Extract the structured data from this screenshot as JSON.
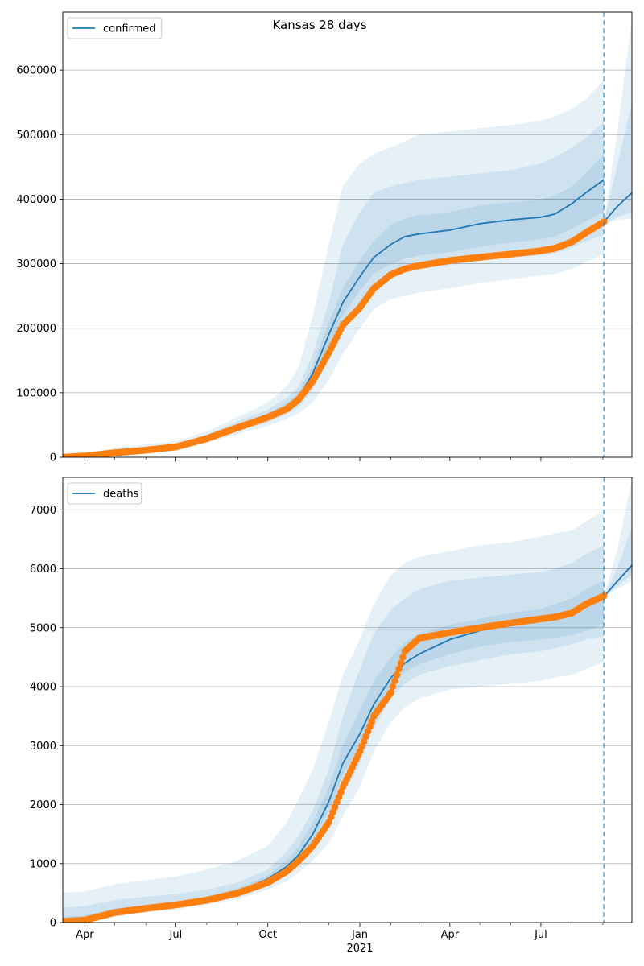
{
  "figure": {
    "title": "Kansas 28 days"
  },
  "chart_data": [
    {
      "type": "line",
      "panel": "top",
      "legend": [
        {
          "label": "confirmed",
          "color": "#1f77b4"
        }
      ],
      "legend_position": "upper-left",
      "xlim": [
        "2020-03-10",
        "2021-09-30"
      ],
      "ylim": [
        0,
        690000
      ],
      "yticks": [
        0,
        100000,
        200000,
        300000,
        400000,
        500000,
        600000
      ],
      "ytick_labels": [
        "0",
        "100000",
        "200000",
        "300000",
        "400000",
        "500000",
        "600000"
      ],
      "grid": "horizontal",
      "forecast_start": "2021-09-02",
      "colors": {
        "model": "#1f77b4",
        "observed": "#ff7f0e",
        "band": "#1f77b4"
      },
      "model_curve": {
        "x": [
          "2020-03-10",
          "2020-04-01",
          "2020-05-01",
          "2020-06-01",
          "2020-07-01",
          "2020-08-01",
          "2020-09-01",
          "2020-10-01",
          "2020-10-20",
          "2020-11-01",
          "2020-11-15",
          "2020-12-01",
          "2020-12-15",
          "2021-01-01",
          "2021-01-15",
          "2021-02-01",
          "2021-02-15",
          "2021-03-01",
          "2021-04-01",
          "2021-05-01",
          "2021-06-01",
          "2021-07-01",
          "2021-07-15",
          "2021-08-01",
          "2021-08-15",
          "2021-09-02"
        ],
        "y": [
          0,
          3000,
          9000,
          13000,
          17000,
          30000,
          48000,
          63000,
          78000,
          93000,
          130000,
          190000,
          240000,
          280000,
          310000,
          330000,
          342000,
          346000,
          352000,
          362000,
          368000,
          372000,
          377000,
          393000,
          410000,
          430000
        ]
      },
      "forecast_curve": {
        "x": [
          "2021-09-02",
          "2021-09-15",
          "2021-09-30"
        ],
        "y": [
          365000,
          388000,
          410000
        ]
      },
      "observed": {
        "x": [
          "2020-03-10",
          "2020-04-01",
          "2020-05-01",
          "2020-06-01",
          "2020-07-01",
          "2020-08-01",
          "2020-09-01",
          "2020-10-01",
          "2020-10-20",
          "2020-11-01",
          "2020-11-15",
          "2020-12-01",
          "2020-12-15",
          "2021-01-01",
          "2021-01-15",
          "2021-02-01",
          "2021-02-15",
          "2021-03-01",
          "2021-04-01",
          "2021-05-01",
          "2021-06-01",
          "2021-07-01",
          "2021-07-15",
          "2021-08-01",
          "2021-08-15",
          "2021-09-02"
        ],
        "y": [
          0,
          2000,
          7000,
          11000,
          16000,
          29000,
          46000,
          62000,
          75000,
          90000,
          118000,
          162000,
          205000,
          232000,
          262000,
          283000,
          292000,
          297000,
          305000,
          310000,
          315000,
          320000,
          324000,
          334000,
          348000,
          365000
        ]
      },
      "bands": [
        {
          "x": [
            "2020-03-10",
            "2020-04-01",
            "2020-05-01",
            "2020-06-01",
            "2020-07-01",
            "2020-08-01",
            "2020-09-01",
            "2020-10-01",
            "2020-10-20",
            "2020-11-01",
            "2020-11-15",
            "2020-12-01",
            "2020-12-15",
            "2021-01-01",
            "2021-01-15",
            "2021-02-01",
            "2021-02-15",
            "2021-03-01",
            "2021-04-01",
            "2021-05-01",
            "2021-06-01",
            "2021-07-01",
            "2021-07-15",
            "2021-08-01",
            "2021-08-15",
            "2021-09-02"
          ],
          "low": [
            0,
            1500,
            5000,
            8000,
            12000,
            22000,
            36000,
            48000,
            60000,
            68000,
            85000,
            120000,
            160000,
            200000,
            230000,
            245000,
            250000,
            255000,
            262000,
            270000,
            276000,
            282000,
            284000,
            292000,
            302000,
            315000
          ],
          "high": [
            0,
            6000,
            14000,
            20000,
            25000,
            40000,
            62000,
            85000,
            110000,
            140000,
            220000,
            330000,
            420000,
            455000,
            470000,
            480000,
            490000,
            500000,
            505000,
            510000,
            515000,
            522000,
            528000,
            540000,
            555000,
            585000
          ]
        },
        {
          "x": [
            "2020-03-10",
            "2020-04-01",
            "2020-05-01",
            "2020-06-01",
            "2020-07-01",
            "2020-08-01",
            "2020-09-01",
            "2020-10-01",
            "2020-10-20",
            "2020-11-01",
            "2020-11-15",
            "2020-12-01",
            "2020-12-15",
            "2021-01-01",
            "2021-01-15",
            "2021-02-01",
            "2021-02-15",
            "2021-03-01",
            "2021-04-01",
            "2021-05-01",
            "2021-06-01",
            "2021-07-01",
            "2021-07-15",
            "2021-08-01",
            "2021-08-15",
            "2021-09-02"
          ],
          "low": [
            0,
            2000,
            6500,
            10000,
            14500,
            26000,
            41000,
            54000,
            67000,
            78000,
            105000,
            150000,
            195000,
            235000,
            265000,
            280000,
            287000,
            292000,
            298000,
            305000,
            310000,
            313000,
            316000,
            325000,
            335000,
            345000
          ],
          "high": [
            0,
            4500,
            11500,
            16500,
            21000,
            35000,
            55000,
            74000,
            92000,
            110000,
            160000,
            240000,
            330000,
            380000,
            410000,
            420000,
            425000,
            430000,
            435000,
            440000,
            445000,
            455000,
            465000,
            480000,
            495000,
            520000
          ]
        },
        {
          "x": [
            "2020-03-10",
            "2020-04-01",
            "2020-05-01",
            "2020-06-01",
            "2020-07-01",
            "2020-08-01",
            "2020-09-01",
            "2020-10-01",
            "2020-10-20",
            "2020-11-01",
            "2020-11-15",
            "2020-12-01",
            "2020-12-15",
            "2021-01-01",
            "2021-01-15",
            "2021-02-01",
            "2021-02-15",
            "2021-03-01",
            "2021-04-01",
            "2021-05-01",
            "2021-06-01",
            "2021-07-01",
            "2021-07-15",
            "2021-08-01",
            "2021-08-15",
            "2021-09-02"
          ],
          "low": [
            0,
            2500,
            7500,
            11500,
            15500,
            28000,
            45000,
            59000,
            72000,
            86000,
            118000,
            170000,
            220000,
            258000,
            285000,
            300000,
            308000,
            313000,
            318000,
            326000,
            333000,
            338000,
            342000,
            354000,
            366000,
            380000
          ],
          "high": [
            0,
            3800,
            10000,
            15000,
            19000,
            33000,
            51000,
            68000,
            84000,
            100000,
            142000,
            210000,
            262000,
            305000,
            335000,
            360000,
            370000,
            375000,
            380000,
            390000,
            395000,
            400000,
            405000,
            420000,
            440000,
            470000
          ]
        }
      ],
      "forecast_bands": [
        {
          "x": [
            "2021-09-02",
            "2021-09-15",
            "2021-09-30"
          ],
          "low": [
            360000,
            368000,
            370000
          ],
          "high": [
            365000,
            500000,
            680000
          ]
        },
        {
          "x": [
            "2021-09-02",
            "2021-09-15",
            "2021-09-30"
          ],
          "low": [
            362000,
            372000,
            380000
          ],
          "high": [
            365000,
            450000,
            550000
          ]
        }
      ]
    },
    {
      "type": "line",
      "panel": "bottom",
      "legend": [
        {
          "label": "deaths",
          "color": "#1f77b4"
        }
      ],
      "legend_position": "upper-left",
      "xlim": [
        "2020-03-10",
        "2021-09-30"
      ],
      "ylim": [
        0,
        7550
      ],
      "yticks": [
        0,
        1000,
        2000,
        3000,
        4000,
        5000,
        6000,
        7000
      ],
      "ytick_labels": [
        "0",
        "1000",
        "2000",
        "3000",
        "4000",
        "5000",
        "6000",
        "7000"
      ],
      "xticks": [
        "2020-04-01",
        "2020-07-01",
        "2020-10-01",
        "2021-01-01",
        "2021-04-01",
        "2021-07-01"
      ],
      "xtick_labels": [
        "Apr",
        "Jul",
        "Oct",
        "Jan",
        "Apr",
        "Jul"
      ],
      "xtick_sublabel": {
        "under": "Jan",
        "text": "2021"
      },
      "grid": "horizontal",
      "forecast_start": "2021-09-02",
      "colors": {
        "model": "#1f77b4",
        "observed": "#ff7f0e",
        "band": "#1f77b4"
      },
      "model_curve": {
        "x": [
          "2020-03-10",
          "2020-04-01",
          "2020-05-01",
          "2020-06-01",
          "2020-07-01",
          "2020-08-01",
          "2020-09-01",
          "2020-10-01",
          "2020-10-20",
          "2020-11-01",
          "2020-11-15",
          "2020-12-01",
          "2020-12-15",
          "2021-01-01",
          "2021-01-15",
          "2021-02-01",
          "2021-02-15",
          "2021-03-01",
          "2021-04-01",
          "2021-05-01",
          "2021-06-01",
          "2021-07-01",
          "2021-07-15",
          "2021-08-01",
          "2021-08-15",
          "2021-09-02"
        ],
        "y": [
          40,
          60,
          180,
          250,
          300,
          400,
          520,
          740,
          950,
          1150,
          1500,
          2050,
          2700,
          3200,
          3700,
          4150,
          4400,
          4550,
          4800,
          4950,
          5050,
          5120,
          5170,
          5250,
          5350,
          5520
        ]
      },
      "forecast_curve": {
        "x": [
          "2021-09-02",
          "2021-09-15",
          "2021-09-30"
        ],
        "y": [
          5530,
          5780,
          6060
        ]
      },
      "observed": {
        "x": [
          "2020-03-10",
          "2020-04-01",
          "2020-05-01",
          "2020-06-01",
          "2020-07-01",
          "2020-08-01",
          "2020-09-01",
          "2020-10-01",
          "2020-10-20",
          "2020-11-01",
          "2020-11-15",
          "2020-12-01",
          "2020-12-15",
          "2021-01-01",
          "2021-01-15",
          "2021-02-01",
          "2021-02-15",
          "2021-03-01",
          "2021-04-01",
          "2021-05-01",
          "2021-06-01",
          "2021-07-01",
          "2021-07-15",
          "2021-08-01",
          "2021-08-15",
          "2021-09-02"
        ],
        "y": [
          20,
          40,
          170,
          240,
          300,
          380,
          500,
          680,
          870,
          1050,
          1300,
          1700,
          2300,
          2900,
          3500,
          3900,
          4600,
          4820,
          4920,
          5000,
          5080,
          5150,
          5180,
          5250,
          5400,
          5540
        ]
      },
      "bands": [
        {
          "x": [
            "2020-03-10",
            "2020-04-01",
            "2020-05-01",
            "2020-06-01",
            "2020-07-01",
            "2020-08-01",
            "2020-09-01",
            "2020-10-01",
            "2020-10-20",
            "2020-11-01",
            "2020-11-15",
            "2020-12-01",
            "2020-12-15",
            "2021-01-01",
            "2021-01-15",
            "2021-02-01",
            "2021-02-15",
            "2021-03-01",
            "2021-04-01",
            "2021-05-01",
            "2021-06-01",
            "2021-07-01",
            "2021-07-15",
            "2021-08-01",
            "2021-08-15",
            "2021-09-02"
          ],
          "low": [
            0,
            0,
            100,
            170,
            220,
            300,
            400,
            560,
            700,
            850,
            1050,
            1350,
            1800,
            2300,
            2900,
            3400,
            3650,
            3800,
            3950,
            4000,
            4050,
            4100,
            4150,
            4200,
            4300,
            4420
          ],
          "high": [
            500,
            530,
            650,
            720,
            780,
            900,
            1050,
            1300,
            1700,
            2100,
            2600,
            3400,
            4200,
            4800,
            5400,
            5900,
            6100,
            6200,
            6300,
            6400,
            6450,
            6550,
            6600,
            6650,
            6800,
            7000
          ]
        },
        {
          "x": [
            "2020-03-10",
            "2020-04-01",
            "2020-05-01",
            "2020-06-01",
            "2020-07-01",
            "2020-08-01",
            "2020-09-01",
            "2020-10-01",
            "2020-10-20",
            "2020-11-01",
            "2020-11-15",
            "2020-12-01",
            "2020-12-15",
            "2021-01-01",
            "2021-01-15",
            "2021-02-01",
            "2021-02-15",
            "2021-03-01",
            "2021-04-01",
            "2021-05-01",
            "2021-06-01",
            "2021-07-01",
            "2021-07-15",
            "2021-08-01",
            "2021-08-15",
            "2021-09-02"
          ],
          "low": [
            0,
            20,
            150,
            220,
            270,
            360,
            470,
            660,
            830,
            1000,
            1250,
            1650,
            2150,
            2700,
            3300,
            3800,
            4050,
            4200,
            4350,
            4450,
            4550,
            4600,
            4650,
            4720,
            4800,
            4850
          ],
          "high": [
            250,
            280,
            380,
            440,
            480,
            560,
            680,
            900,
            1200,
            1480,
            1900,
            2600,
            3500,
            4300,
            4900,
            5300,
            5500,
            5650,
            5800,
            5850,
            5900,
            5950,
            6000,
            6100,
            6250,
            6400
          ]
        },
        {
          "x": [
            "2020-03-10",
            "2020-04-01",
            "2020-05-01",
            "2020-06-01",
            "2020-07-01",
            "2020-08-01",
            "2020-09-01",
            "2020-10-01",
            "2020-10-20",
            "2020-11-01",
            "2020-11-15",
            "2020-12-01",
            "2020-12-15",
            "2021-01-01",
            "2021-01-15",
            "2021-02-01",
            "2021-02-15",
            "2021-03-01",
            "2021-04-01",
            "2021-05-01",
            "2021-06-01",
            "2021-07-01",
            "2021-07-15",
            "2021-08-01",
            "2021-08-15",
            "2021-09-02"
          ],
          "low": [
            10,
            40,
            170,
            240,
            290,
            380,
            500,
            720,
            920,
            1100,
            1400,
            1900,
            2500,
            3000,
            3550,
            4000,
            4250,
            4380,
            4550,
            4680,
            4760,
            4800,
            4830,
            4880,
            4950,
            5050
          ],
          "high": [
            100,
            120,
            240,
            300,
            350,
            440,
            580,
            800,
            1050,
            1300,
            1700,
            2300,
            3000,
            3600,
            4100,
            4500,
            4750,
            4900,
            5050,
            5150,
            5250,
            5320,
            5400,
            5500,
            5650,
            5800
          ]
        }
      ],
      "forecast_bands": [
        {
          "x": [
            "2021-09-02",
            "2021-09-15",
            "2021-09-30"
          ],
          "low": [
            5520,
            5650,
            5800
          ],
          "high": [
            5540,
            6300,
            7500
          ]
        },
        {
          "x": [
            "2021-09-02",
            "2021-09-15",
            "2021-09-30"
          ],
          "low": [
            5525,
            5700,
            5900
          ],
          "high": [
            5535,
            6000,
            6700
          ]
        }
      ]
    }
  ]
}
